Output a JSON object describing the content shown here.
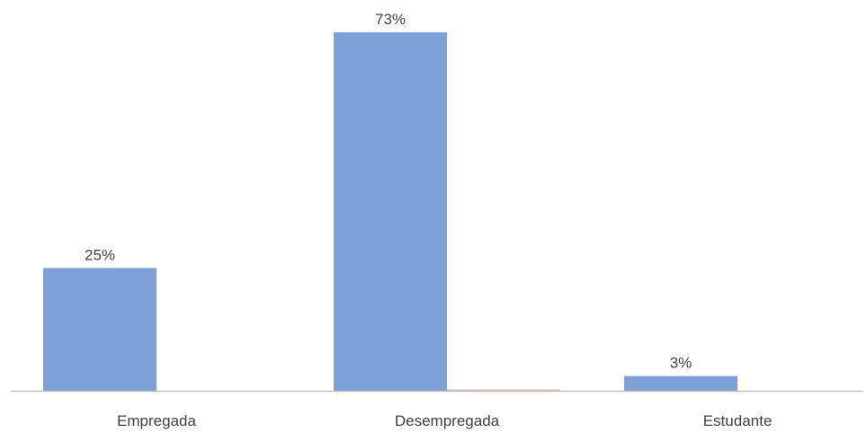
{
  "chart_data": {
    "type": "bar",
    "categories": [
      "Empregada",
      "Desempregada",
      "Estudante"
    ],
    "series": [
      {
        "values": [
          25,
          73,
          3
        ],
        "value_labels": [
          "25%",
          "73%",
          "3%"
        ],
        "color": "#7da0d6"
      },
      {
        "values": [
          0,
          0.2,
          0
        ],
        "color": "#e8b9a6"
      }
    ],
    "ylim": [
      0,
      73
    ],
    "grid": false,
    "legend": "none",
    "axis_color": "#bfbfbf"
  }
}
